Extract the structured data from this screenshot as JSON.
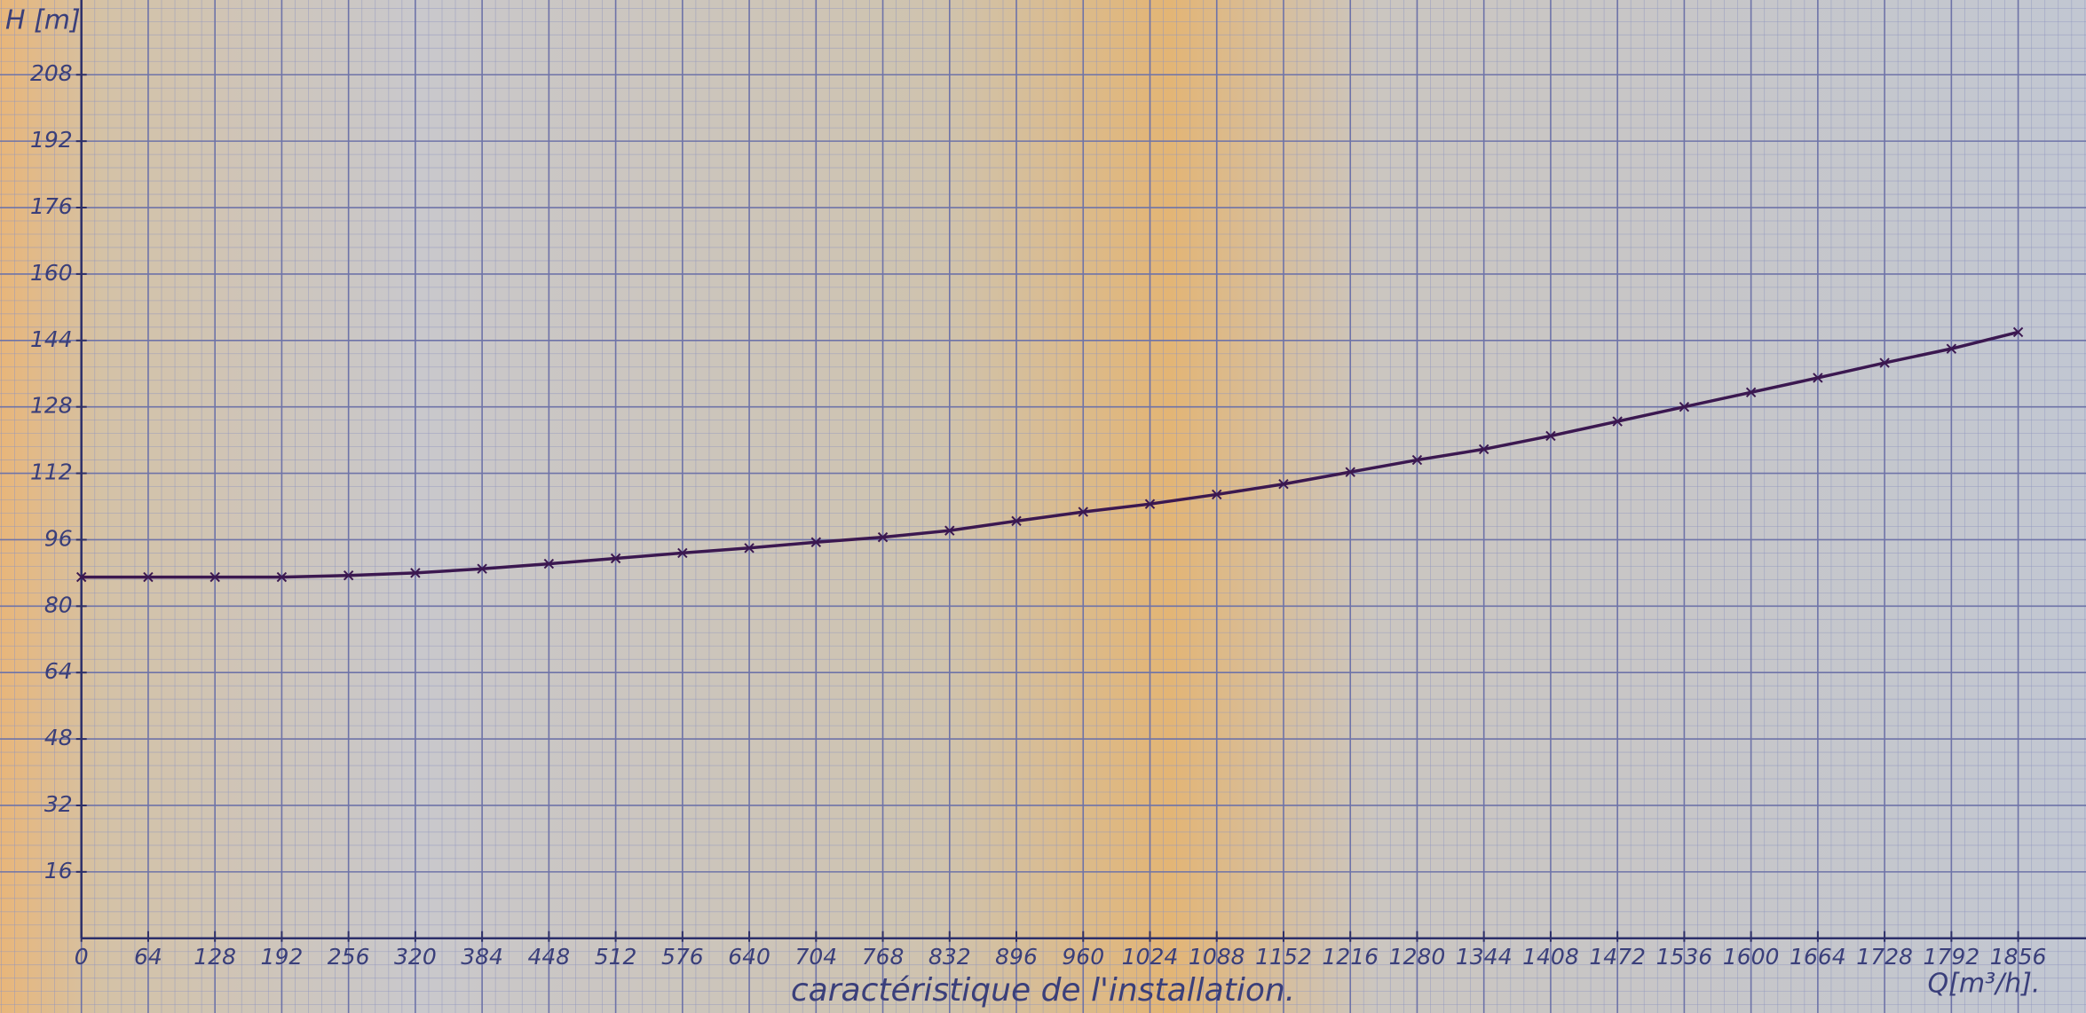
{
  "chart_data": {
    "type": "line",
    "title": "caractéristique de l'installation.",
    "x_label": "Q[m³/h].",
    "y_label": "H [m]",
    "x": [
      0,
      64,
      128,
      192,
      256,
      320,
      384,
      448,
      512,
      576,
      640,
      704,
      768,
      832,
      896,
      960,
      1024,
      1088,
      1152,
      1216,
      1280,
      1344,
      1408,
      1472,
      1536,
      1600,
      1664,
      1728,
      1792,
      1856
    ],
    "values": [
      87,
      87,
      87,
      87,
      87.4,
      88,
      89,
      90.2,
      91.5,
      92.8,
      94,
      95.4,
      96.6,
      98.2,
      100.5,
      102.7,
      104.6,
      106.9,
      109.4,
      112.3,
      115.2,
      117.8,
      121,
      124.5,
      128,
      131.5,
      135,
      138.6,
      142,
      146
    ],
    "color": "#3b1850",
    "xlim": [
      -78,
      1921
    ],
    "ylim": [
      -18,
      226
    ],
    "xticks": [
      0,
      64,
      128,
      192,
      256,
      320,
      384,
      448,
      512,
      576,
      640,
      704,
      768,
      832,
      896,
      960,
      1024,
      1088,
      1152,
      1216,
      1280,
      1344,
      1408,
      1472,
      1536,
      1600,
      1664,
      1728,
      1792,
      1856
    ],
    "yticks": [
      16,
      32,
      48,
      64,
      80,
      96,
      112,
      128,
      144,
      160,
      176,
      192,
      208
    ],
    "grid": true
  }
}
